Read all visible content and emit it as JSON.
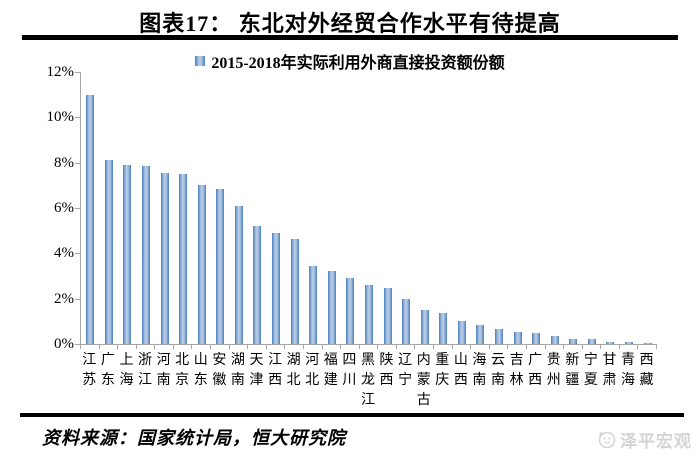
{
  "page": {
    "title": "图表17： 东北对外经贸合作水平有待提高",
    "source_label": "资料来源：国家统计局，恒大研究院",
    "watermark_label": "泽平宏观"
  },
  "colors": {
    "bar_edge": "#4a7ebb",
    "bar_center": "#bccfe8",
    "axis": "#a6a6a6",
    "rule": "#000000",
    "watermark": "#d4d4d4"
  },
  "chart_data": {
    "type": "bar",
    "title": "2015-2018年实际利用外商直接投资额份额",
    "legend": [
      "2015-2018年实际利用外商直接投资额份额"
    ],
    "legend_position": "top-center",
    "categories": [
      "江苏",
      "广东",
      "上海",
      "浙江",
      "河南",
      "北京",
      "山东",
      "安徽",
      "湖南",
      "天津",
      "江西",
      "湖北",
      "河北",
      "福建",
      "四川",
      "黑龙江",
      "陕西",
      "辽宁",
      "内蒙古",
      "重庆",
      "山西",
      "海南",
      "云南",
      "吉林",
      "广西",
      "贵州",
      "新疆",
      "宁夏",
      "甘肃",
      "青海",
      "西藏"
    ],
    "values": [
      11.0,
      8.1,
      7.9,
      7.85,
      7.55,
      7.5,
      7.0,
      6.85,
      6.1,
      5.2,
      4.9,
      4.65,
      3.45,
      3.2,
      2.9,
      2.6,
      2.45,
      2.0,
      1.5,
      1.35,
      1.0,
      0.85,
      0.65,
      0.55,
      0.5,
      0.35,
      0.2,
      0.2,
      0.1,
      0.08,
      0.05
    ],
    "unit": "%",
    "xlabel": "",
    "ylabel": "",
    "ylim": [
      0,
      12
    ],
    "yticks": [
      "0%",
      "2%",
      "4%",
      "6%",
      "8%",
      "10%",
      "12%"
    ],
    "grid": false
  }
}
